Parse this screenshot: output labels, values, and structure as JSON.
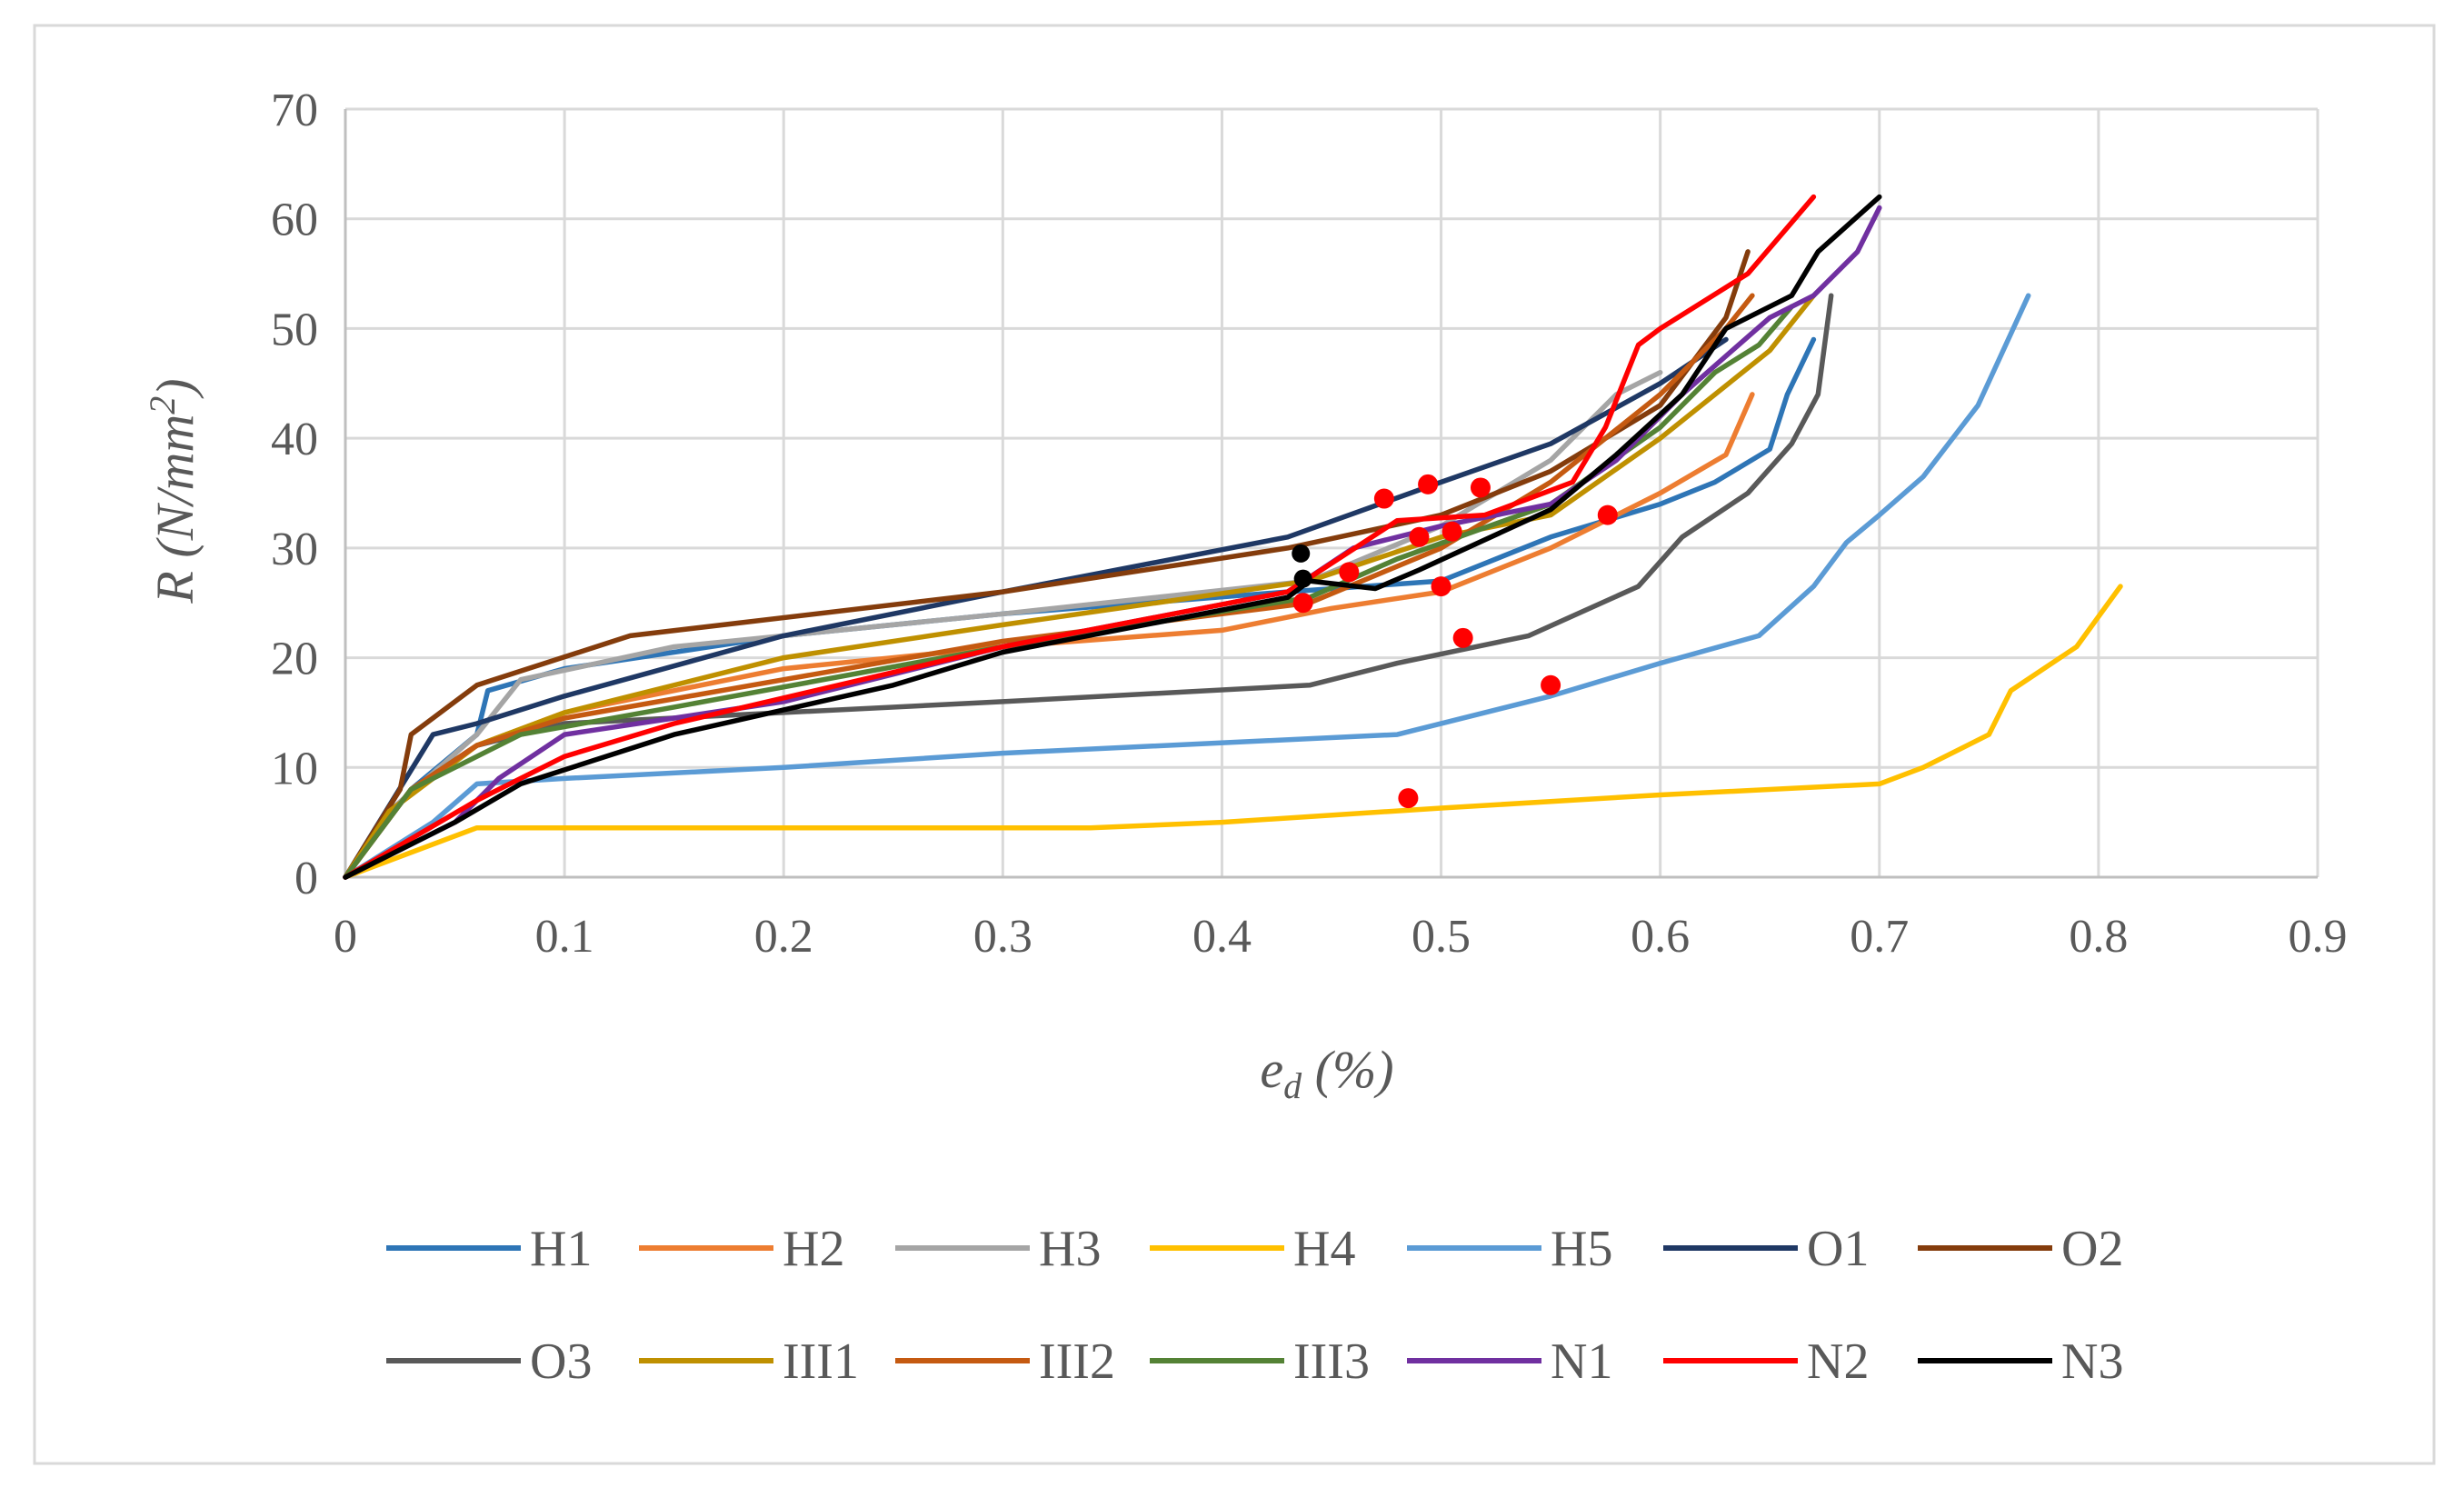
{
  "chart_data": {
    "type": "line",
    "title": "",
    "xlabel": "e_d (%)",
    "ylabel": "R (N/mm2)",
    "xlim": [
      0,
      0.9
    ],
    "ylim": [
      0,
      70
    ],
    "x_ticks": [
      "0",
      "0.1",
      "0.2",
      "0.3",
      "0.4",
      "0.5",
      "0.6",
      "0.7",
      "0.8",
      "0.9"
    ],
    "y_ticks": [
      "0",
      "10",
      "20",
      "30",
      "40",
      "50",
      "60",
      "70"
    ],
    "grid": true,
    "legend_position": "bottom",
    "series": [
      {
        "name": "H1",
        "color": "#2E75B6",
        "points": [
          [
            0,
            0
          ],
          [
            0.03,
            8
          ],
          [
            0.06,
            13
          ],
          [
            0.065,
            17
          ],
          [
            0.1,
            19
          ],
          [
            0.2,
            22
          ],
          [
            0.3,
            24
          ],
          [
            0.43,
            26
          ],
          [
            0.5,
            27
          ],
          [
            0.55,
            31
          ],
          [
            0.6,
            34
          ],
          [
            0.625,
            36
          ],
          [
            0.65,
            39
          ],
          [
            0.658,
            44
          ],
          [
            0.67,
            49
          ]
        ]
      },
      {
        "name": "H2",
        "color": "#ED7D31",
        "points": [
          [
            0,
            0
          ],
          [
            0.03,
            8
          ],
          [
            0.06,
            12
          ],
          [
            0.1,
            15
          ],
          [
            0.2,
            19
          ],
          [
            0.3,
            21
          ],
          [
            0.4,
            22.5
          ],
          [
            0.45,
            24.5
          ],
          [
            0.5,
            26
          ],
          [
            0.55,
            30
          ],
          [
            0.6,
            35
          ],
          [
            0.63,
            38.5
          ],
          [
            0.642,
            44
          ]
        ]
      },
      {
        "name": "H3",
        "color": "#A5A5A5",
        "points": [
          [
            0,
            0
          ],
          [
            0.02,
            6
          ],
          [
            0.06,
            13
          ],
          [
            0.08,
            18
          ],
          [
            0.15,
            21
          ],
          [
            0.3,
            24
          ],
          [
            0.44,
            27
          ],
          [
            0.5,
            32
          ],
          [
            0.55,
            38
          ],
          [
            0.58,
            44
          ],
          [
            0.6,
            46
          ]
        ]
      },
      {
        "name": "H4",
        "color": "#FFC000",
        "points": [
          [
            0,
            0
          ],
          [
            0.06,
            4.5
          ],
          [
            0.2,
            4.5
          ],
          [
            0.34,
            4.5
          ],
          [
            0.4,
            5
          ],
          [
            0.5,
            6.3
          ],
          [
            0.6,
            7.5
          ],
          [
            0.7,
            8.5
          ],
          [
            0.72,
            10
          ],
          [
            0.75,
            13
          ],
          [
            0.76,
            17
          ],
          [
            0.79,
            21
          ],
          [
            0.81,
            26.5
          ]
        ]
      },
      {
        "name": "H5",
        "color": "#5B9BD5",
        "points": [
          [
            0,
            0
          ],
          [
            0.04,
            5
          ],
          [
            0.06,
            8.5
          ],
          [
            0.1,
            9
          ],
          [
            0.2,
            10
          ],
          [
            0.3,
            11.3
          ],
          [
            0.48,
            13
          ],
          [
            0.55,
            16.5
          ],
          [
            0.6,
            19.5
          ],
          [
            0.645,
            22
          ],
          [
            0.67,
            26.5
          ],
          [
            0.685,
            30.5
          ],
          [
            0.7,
            33
          ],
          [
            0.72,
            36.5
          ],
          [
            0.745,
            43
          ],
          [
            0.768,
            53
          ]
        ]
      },
      {
        "name": "O1",
        "color": "#1F3864",
        "points": [
          [
            0,
            0
          ],
          [
            0.04,
            13
          ],
          [
            0.06,
            14
          ],
          [
            0.1,
            16.5
          ],
          [
            0.2,
            22
          ],
          [
            0.3,
            26
          ],
          [
            0.43,
            31
          ],
          [
            0.5,
            36
          ],
          [
            0.55,
            39.5
          ],
          [
            0.6,
            45
          ],
          [
            0.63,
            49
          ]
        ]
      },
      {
        "name": "O2",
        "color": "#843C0C",
        "points": [
          [
            0,
            0
          ],
          [
            0.025,
            8
          ],
          [
            0.03,
            13
          ],
          [
            0.06,
            17.5
          ],
          [
            0.13,
            22
          ],
          [
            0.3,
            26
          ],
          [
            0.43,
            30
          ],
          [
            0.5,
            33
          ],
          [
            0.55,
            37
          ],
          [
            0.6,
            43
          ],
          [
            0.63,
            51
          ],
          [
            0.64,
            57
          ]
        ]
      },
      {
        "name": "O3",
        "color": "#595959",
        "points": [
          [
            0,
            0
          ],
          [
            0.03,
            8
          ],
          [
            0.06,
            12
          ],
          [
            0.1,
            14
          ],
          [
            0.2,
            15
          ],
          [
            0.3,
            16
          ],
          [
            0.44,
            17.5
          ],
          [
            0.48,
            19.5
          ],
          [
            0.54,
            22
          ],
          [
            0.59,
            26.5
          ],
          [
            0.61,
            31
          ],
          [
            0.64,
            35
          ],
          [
            0.66,
            39.5
          ],
          [
            0.672,
            44
          ],
          [
            0.678,
            53
          ]
        ]
      },
      {
        "name": "III1",
        "color": "#BF9000",
        "points": [
          [
            0,
            0
          ],
          [
            0.02,
            6
          ],
          [
            0.06,
            12
          ],
          [
            0.1,
            15
          ],
          [
            0.2,
            20
          ],
          [
            0.3,
            23
          ],
          [
            0.44,
            27
          ],
          [
            0.5,
            31
          ],
          [
            0.55,
            33
          ],
          [
            0.6,
            40
          ],
          [
            0.65,
            48
          ],
          [
            0.67,
            53
          ]
        ]
      },
      {
        "name": "III2",
        "color": "#C55A11",
        "points": [
          [
            0,
            0
          ],
          [
            0.03,
            8
          ],
          [
            0.06,
            12
          ],
          [
            0.1,
            14.5
          ],
          [
            0.2,
            18
          ],
          [
            0.3,
            21.5
          ],
          [
            0.44,
            25
          ],
          [
            0.5,
            30
          ],
          [
            0.55,
            36
          ],
          [
            0.6,
            44
          ],
          [
            0.63,
            50
          ],
          [
            0.642,
            53
          ]
        ]
      },
      {
        "name": "III3",
        "color": "#548235",
        "points": [
          [
            0,
            0
          ],
          [
            0.03,
            8
          ],
          [
            0.08,
            13
          ],
          [
            0.15,
            15.5
          ],
          [
            0.3,
            21
          ],
          [
            0.44,
            25.5
          ],
          [
            0.48,
            29
          ],
          [
            0.55,
            34
          ],
          [
            0.6,
            41
          ],
          [
            0.625,
            46
          ],
          [
            0.645,
            48.5
          ],
          [
            0.66,
            52
          ]
        ]
      },
      {
        "name": "N1",
        "color": "#7030A0",
        "points": [
          [
            0,
            0
          ],
          [
            0.05,
            5
          ],
          [
            0.07,
            9
          ],
          [
            0.1,
            13
          ],
          [
            0.2,
            16
          ],
          [
            0.3,
            21
          ],
          [
            0.43,
            26
          ],
          [
            0.46,
            30
          ],
          [
            0.5,
            32
          ],
          [
            0.55,
            34
          ],
          [
            0.58,
            38
          ],
          [
            0.61,
            44
          ],
          [
            0.65,
            51
          ],
          [
            0.67,
            53
          ],
          [
            0.69,
            57
          ],
          [
            0.7,
            61
          ]
        ]
      },
      {
        "name": "N2",
        "color": "#FF0000",
        "points": [
          [
            0,
            0
          ],
          [
            0.06,
            7
          ],
          [
            0.1,
            11
          ],
          [
            0.15,
            14
          ],
          [
            0.3,
            21
          ],
          [
            0.43,
            26
          ],
          [
            0.48,
            32.5
          ],
          [
            0.52,
            33
          ],
          [
            0.56,
            36
          ],
          [
            0.575,
            41
          ],
          [
            0.59,
            48.5
          ],
          [
            0.6,
            50
          ],
          [
            0.64,
            55
          ],
          [
            0.67,
            62
          ]
        ]
      },
      {
        "name": "N3",
        "color": "#000000",
        "points": [
          [
            0,
            0
          ],
          [
            0.05,
            5
          ],
          [
            0.08,
            8.5
          ],
          [
            0.15,
            13
          ],
          [
            0.25,
            17.5
          ],
          [
            0.3,
            20.5
          ],
          [
            0.43,
            25.5
          ],
          [
            0.44,
            27
          ],
          [
            0.47,
            26.3
          ],
          [
            0.49,
            28
          ],
          [
            0.55,
            33.5
          ],
          [
            0.58,
            38.5
          ],
          [
            0.61,
            44
          ],
          [
            0.63,
            50
          ],
          [
            0.66,
            53
          ],
          [
            0.672,
            57
          ],
          [
            0.7,
            62
          ]
        ]
      }
    ],
    "markers": [
      {
        "x": 0.474,
        "y": 34.5
      },
      {
        "x": 0.494,
        "y": 35.8
      },
      {
        "x": 0.518,
        "y": 35.5
      },
      {
        "x": 0.49,
        "y": 31
      },
      {
        "x": 0.505,
        "y": 31.5
      },
      {
        "x": 0.458,
        "y": 27.8
      },
      {
        "x": 0.437,
        "y": 25
      },
      {
        "x": 0.5,
        "y": 26.5
      },
      {
        "x": 0.576,
        "y": 33
      },
      {
        "x": 0.51,
        "y": 21.8
      },
      {
        "x": 0.55,
        "y": 17.5
      },
      {
        "x": 0.485,
        "y": 7.2
      }
    ],
    "dark_markers": [
      {
        "x": 0.436,
        "y": 29.5
      },
      {
        "x": 0.437,
        "y": 27.2
      }
    ],
    "marker_color": "#FF0000",
    "dark_marker_color": "#000000"
  }
}
